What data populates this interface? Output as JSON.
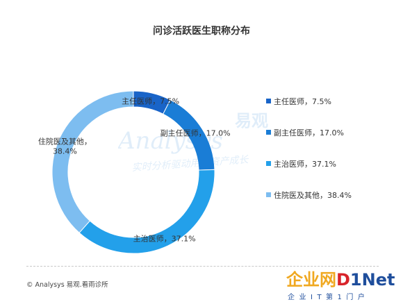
{
  "chart_data": {
    "type": "pie",
    "title": "问诊活跃医生职称分布",
    "categories": [
      "主任医师",
      "副主任医师",
      "主治医师",
      "住院医及其他"
    ],
    "values": [
      7.5,
      17.0,
      37.1,
      38.4
    ],
    "value_labels": [
      "7.5%",
      "17.0%",
      "37.1%",
      "38.4%"
    ],
    "series": [
      {
        "values": [
          7.5,
          17.0,
          37.1,
          38.4
        ]
      }
    ],
    "colors": [
      "#1964c8",
      "#1a7dd6",
      "#23a0ea",
      "#7dbdf0"
    ],
    "legend_labels": [
      "主任医师，7.5%",
      "副主任医师，17.0%",
      "主治医师，37.1%",
      "住院医及其他，38.4%"
    ],
    "data_labels": [
      [
        "主任医师，7.5%"
      ],
      [
        "副主任医师，17.0%"
      ],
      [
        "主治医师，37.1%"
      ],
      [
        "住院医及其他，",
        "38.4%"
      ]
    ],
    "style": "donut",
    "legend_position": "right"
  },
  "watermark": {
    "brand_cn": "易观",
    "brand_en": "Analysys",
    "slogan": "实时分析驱动用户资产成长"
  },
  "footer": {
    "source": "© Analysys 易观.看雨诊所"
  },
  "logo": {
    "cn": "企业网",
    "d": "D",
    "net": "1Net",
    "sub": "企业IT第1门户"
  }
}
